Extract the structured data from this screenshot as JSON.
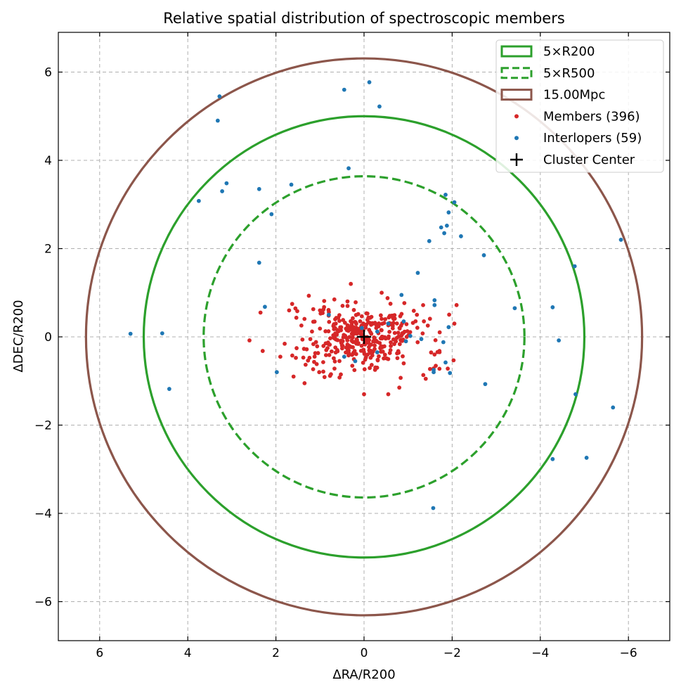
{
  "chart_data": {
    "type": "scatter",
    "title": "Relative spatial distribution of spectroscopic members",
    "xlabel": "ΔRA/R200",
    "ylabel": "ΔDEC/R200",
    "xlim": [
      7,
      -7
    ],
    "ylim": [
      -6.9,
      6.9
    ],
    "x_inverted": true,
    "grid": true,
    "xticks": [
      6,
      4,
      2,
      0,
      -2,
      -4,
      -6
    ],
    "yticks": [
      6,
      4,
      2,
      0,
      -2,
      -4,
      -6
    ],
    "xtick_labels": [
      "6",
      "4",
      "2",
      "0",
      "−2",
      "−4",
      "−6"
    ],
    "ytick_labels": [
      "6",
      "4",
      "2",
      "0",
      "−2",
      "−4",
      "−6"
    ],
    "legend_position": "top-right",
    "circles": [
      {
        "name": "5×R200",
        "radius": 5.0,
        "style": "solid",
        "color": "#2ca02c"
      },
      {
        "name": "5×R500",
        "radius": 3.64,
        "style": "dashed",
        "color": "#2ca02c"
      },
      {
        "name": "15.00Mpc",
        "radius": 6.31,
        "style": "solid",
        "color": "#8c564b"
      }
    ],
    "members": {
      "name": "Members (396)",
      "count": 396,
      "color": "#d62728",
      "distribution": {
        "ra_center": 0.0,
        "ra_halfwidth": 2.1,
        "dec_center": 0.0,
        "dec_halfwidth": 1.0
      },
      "points": [
        [
          2.6,
          -0.08
        ],
        [
          2.35,
          0.55
        ],
        [
          2.3,
          -0.32
        ],
        [
          0.0,
          -1.3
        ],
        [
          -0.55,
          -1.3
        ],
        [
          -0.8,
          -1.15
        ],
        [
          -1.4,
          -0.95
        ],
        [
          -1.6,
          -0.4
        ],
        [
          -1.9,
          -0.72
        ],
        [
          -2.1,
          0.72
        ],
        [
          -2.05,
          0.3
        ],
        [
          0.3,
          1.2
        ],
        [
          -0.4,
          1.0
        ],
        [
          1.7,
          0.6
        ],
        [
          1.6,
          -0.9
        ],
        [
          1.35,
          -1.05
        ],
        [
          0.0,
          0.0
        ],
        [
          0.5,
          -0.2
        ],
        [
          -0.2,
          0.3
        ],
        [
          -1.2,
          0.5
        ],
        [
          -0.9,
          -0.6
        ],
        [
          1.0,
          0.6
        ],
        [
          -0.6,
          0.75
        ],
        [
          1.9,
          -0.45
        ]
      ]
    },
    "interlopers": {
      "name": "Interlopers (59)",
      "count": 59,
      "color": "#1f77b4",
      "points": [
        [
          3.28,
          5.45
        ],
        [
          3.32,
          4.9
        ],
        [
          0.45,
          5.6
        ],
        [
          -0.12,
          5.77
        ],
        [
          -0.35,
          5.22
        ],
        [
          0.35,
          3.82
        ],
        [
          3.75,
          3.08
        ],
        [
          3.22,
          3.3
        ],
        [
          3.12,
          3.48
        ],
        [
          2.38,
          3.35
        ],
        [
          1.65,
          3.45
        ],
        [
          2.1,
          2.78
        ],
        [
          -1.85,
          3.22
        ],
        [
          -2.05,
          3.05
        ],
        [
          -1.92,
          2.82
        ],
        [
          -1.88,
          2.52
        ],
        [
          -1.75,
          2.48
        ],
        [
          -1.82,
          2.35
        ],
        [
          -2.2,
          2.28
        ],
        [
          -1.48,
          2.17
        ],
        [
          -5.83,
          2.2
        ],
        [
          2.38,
          1.68
        ],
        [
          -1.22,
          1.45
        ],
        [
          -2.72,
          1.85
        ],
        [
          -4.78,
          1.6
        ],
        [
          2.25,
          0.68
        ],
        [
          -0.85,
          0.95
        ],
        [
          -1.6,
          0.83
        ],
        [
          -1.6,
          0.72
        ],
        [
          -3.42,
          0.65
        ],
        [
          -4.28,
          0.67
        ],
        [
          5.3,
          0.07
        ],
        [
          4.58,
          0.08
        ],
        [
          0.05,
          0.2
        ],
        [
          -0.3,
          0.12
        ],
        [
          -1.05,
          0.02
        ],
        [
          -1.3,
          -0.05
        ],
        [
          -4.42,
          -0.08
        ],
        [
          -0.95,
          -0.1
        ],
        [
          -1.85,
          -0.58
        ],
        [
          -1.58,
          -0.75
        ],
        [
          -1.58,
          -0.8
        ],
        [
          -1.95,
          -0.82
        ],
        [
          -1.8,
          -0.12
        ],
        [
          -1.92,
          0.22
        ],
        [
          1.98,
          -0.8
        ],
        [
          4.42,
          -1.18
        ],
        [
          -2.75,
          -1.07
        ],
        [
          -4.8,
          -1.3
        ],
        [
          -5.65,
          -1.6
        ],
        [
          -4.28,
          -2.77
        ],
        [
          -5.05,
          -2.74
        ],
        [
          -1.57,
          -3.88
        ],
        [
          0.45,
          -0.45
        ],
        [
          -0.55,
          0.3
        ],
        [
          0.2,
          -0.55
        ],
        [
          -0.3,
          -0.35
        ],
        [
          0.8,
          0.5
        ],
        [
          -0.9,
          0.35
        ]
      ]
    },
    "center": {
      "name": "Cluster Center",
      "x": 0,
      "y": 0,
      "marker": "+"
    },
    "legend": [
      {
        "label": "5×R200",
        "kind": "circle-solid",
        "color": "#2ca02c"
      },
      {
        "label": "5×R500",
        "kind": "circle-dashed",
        "color": "#2ca02c"
      },
      {
        "label": "15.00Mpc",
        "kind": "circle-solid",
        "color": "#8c564b"
      },
      {
        "label": "Members (396)",
        "kind": "dot",
        "color": "#d62728"
      },
      {
        "label": "Interlopers (59)",
        "kind": "dot",
        "color": "#1f77b4"
      },
      {
        "label": "Cluster Center",
        "kind": "plus",
        "color": "#000000"
      }
    ]
  }
}
